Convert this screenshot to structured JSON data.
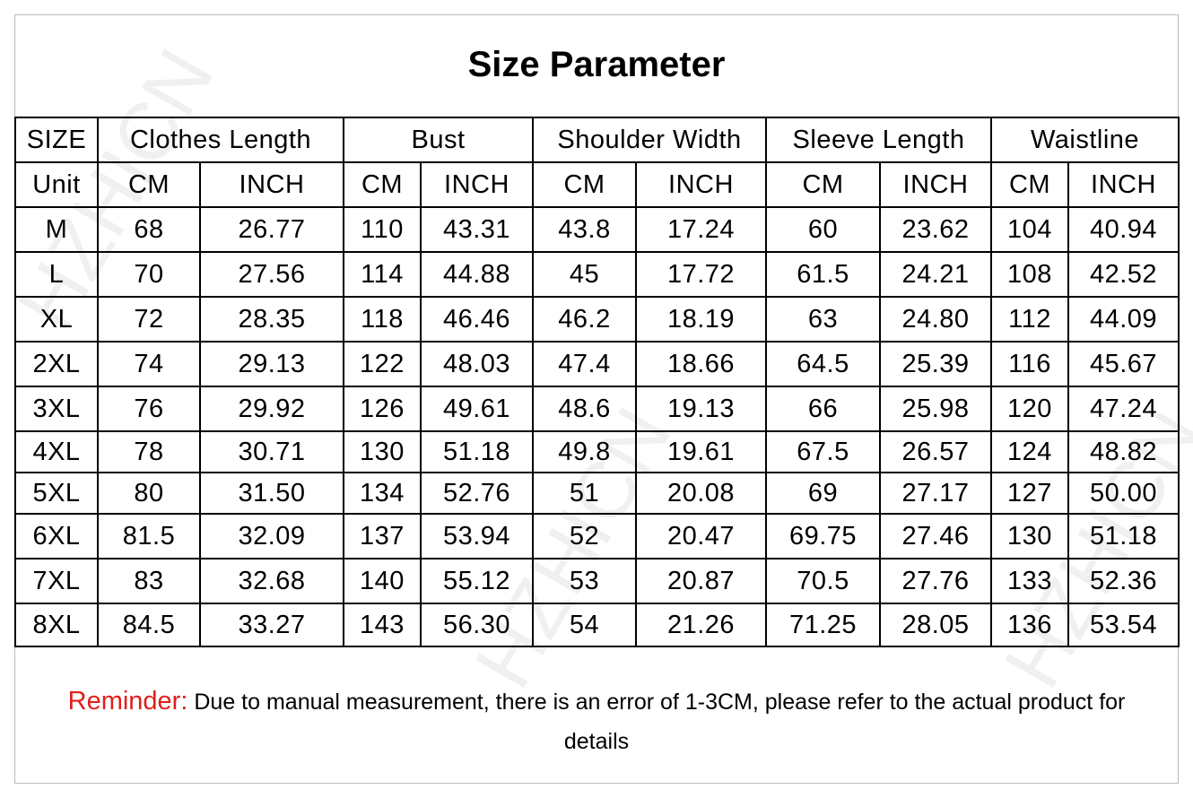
{
  "title": "Size Parameter",
  "watermark": "HZHICN",
  "table": {
    "header": [
      "SIZE",
      "Clothes Length",
      "Bust",
      "Shoulder Width",
      "Sleeve Length",
      "Waistline"
    ],
    "units": [
      "Unit",
      "CM",
      "INCH",
      "CM",
      "INCH",
      "CM",
      "INCH",
      "CM",
      "INCH",
      "CM",
      "INCH"
    ],
    "rows": [
      [
        "M",
        "68",
        "26.77",
        "110",
        "43.31",
        "43.8",
        "17.24",
        "60",
        "23.62",
        "104",
        "40.94"
      ],
      [
        "L",
        "70",
        "27.56",
        "114",
        "44.88",
        "45",
        "17.72",
        "61.5",
        "24.21",
        "108",
        "42.52"
      ],
      [
        "XL",
        "72",
        "28.35",
        "118",
        "46.46",
        "46.2",
        "18.19",
        "63",
        "24.80",
        "112",
        "44.09"
      ],
      [
        "2XL",
        "74",
        "29.13",
        "122",
        "48.03",
        "47.4",
        "18.66",
        "64.5",
        "25.39",
        "116",
        "45.67"
      ],
      [
        "3XL",
        "76",
        "29.92",
        "126",
        "49.61",
        "48.6",
        "19.13",
        "66",
        "25.98",
        "120",
        "47.24"
      ],
      [
        "4XL",
        "78",
        "30.71",
        "130",
        "51.18",
        "49.8",
        "19.61",
        "67.5",
        "26.57",
        "124",
        "48.82"
      ],
      [
        "5XL",
        "80",
        "31.50",
        "134",
        "52.76",
        "51",
        "20.08",
        "69",
        "27.17",
        "127",
        "50.00"
      ],
      [
        "6XL",
        "81.5",
        "32.09",
        "137",
        "53.94",
        "52",
        "20.47",
        "69.75",
        "27.46",
        "130",
        "51.18"
      ],
      [
        "7XL",
        "83",
        "32.68",
        "140",
        "55.12",
        "53",
        "20.87",
        "70.5",
        "27.76",
        "133",
        "52.36"
      ],
      [
        "8XL",
        "84.5",
        "33.27",
        "143",
        "56.30",
        "54",
        "21.26",
        "71.25",
        "28.05",
        "136",
        "53.54"
      ]
    ]
  },
  "reminder": {
    "label": "Reminder:",
    "text": "Due to manual measurement, there is an error of 1-3CM, please refer to the actual product for details"
  }
}
